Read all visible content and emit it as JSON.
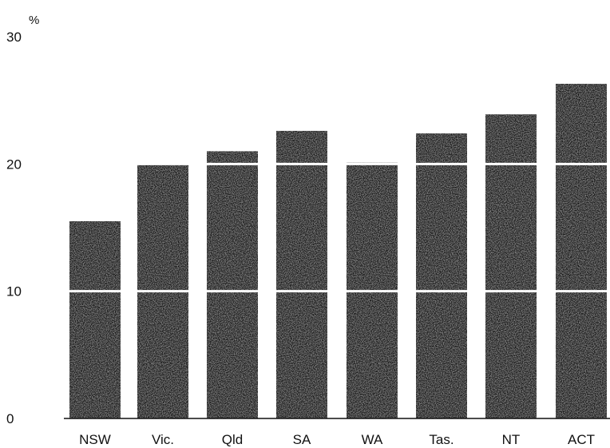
{
  "chart_data": {
    "type": "bar",
    "title": "",
    "xlabel": "",
    "ylabel": "%",
    "categories": [
      "NSW",
      "Vic.",
      "Qld",
      "SA",
      "WA",
      "Tas.",
      "NT",
      "ACT"
    ],
    "series": [
      {
        "values": [
          15.5,
          20.0,
          21.0,
          22.6,
          20.1,
          22.4,
          23.9,
          26.3
        ]
      }
    ],
    "ylim": [
      0,
      30
    ],
    "yticks": [
      0,
      10,
      20,
      30
    ],
    "ytick_labels": [
      "0",
      "10",
      "20",
      "30"
    ],
    "grid": true,
    "legend": "none",
    "colors": {
      "bar": "#1e1e1e",
      "bar_texture": "#7a7a7a",
      "gridline": "#ffffff",
      "axis": "#111111"
    }
  }
}
